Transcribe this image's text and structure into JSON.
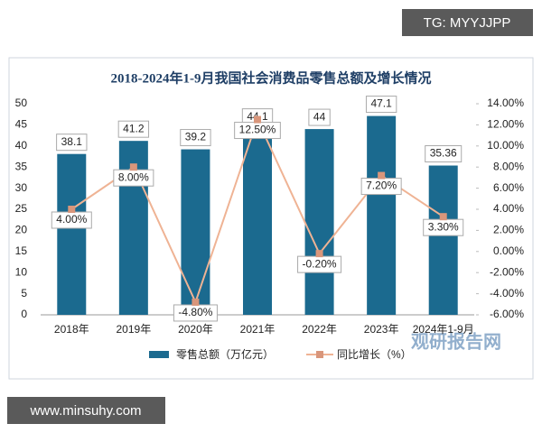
{
  "chart_data": {
    "type": "bar",
    "title": "2018-2024年1-9月我国社会消费品零售总额及增长情况",
    "categories": [
      "2018年",
      "2019年",
      "2020年",
      "2021年",
      "2022年",
      "2023年",
      "2024年1-9月"
    ],
    "series": [
      {
        "name": "零售总额（万亿元）",
        "color": "#1b6a8f",
        "type": "bar",
        "values": [
          38.1,
          41.2,
          39.2,
          44.1,
          44,
          47.1,
          35.36
        ]
      },
      {
        "name": "同比增长（%）",
        "color": "#efb394",
        "marker_color": "#d9967b",
        "type": "line",
        "axis": "y2",
        "values": [
          4.0,
          8.0,
          -4.8,
          12.5,
          -0.2,
          7.2,
          3.3
        ],
        "value_labels": [
          "4.00%",
          "8.00%",
          "-4.80%",
          "12.50%",
          "-0.20%",
          "7.20%",
          "3.30%"
        ]
      }
    ],
    "ylim": [
      0,
      50
    ],
    "yticks": [
      0,
      5,
      10,
      15,
      20,
      25,
      30,
      35,
      40,
      45,
      50
    ],
    "y2lim": [
      -6,
      14
    ],
    "y2ticks": [
      {
        "value": -6,
        "label": "-6.00%"
      },
      {
        "value": -4,
        "label": "-4.00%"
      },
      {
        "value": -2,
        "label": "-2.00%"
      },
      {
        "value": 0,
        "label": "0.00%"
      },
      {
        "value": 2,
        "label": "2.00%"
      },
      {
        "value": 4,
        "label": "4.00%"
      },
      {
        "value": 6,
        "label": "6.00%"
      },
      {
        "value": 8,
        "label": "8.00%"
      },
      {
        "value": 10,
        "label": "10.00%"
      },
      {
        "value": 12,
        "label": "12.00%"
      },
      {
        "value": 14,
        "label": "14.00%"
      }
    ],
    "grid": false,
    "legend": "bottom"
  },
  "watermarks": {
    "top": "TG: MYYJJPP",
    "bottom": "www.minsuhy.com",
    "logo": "观研报告网"
  }
}
